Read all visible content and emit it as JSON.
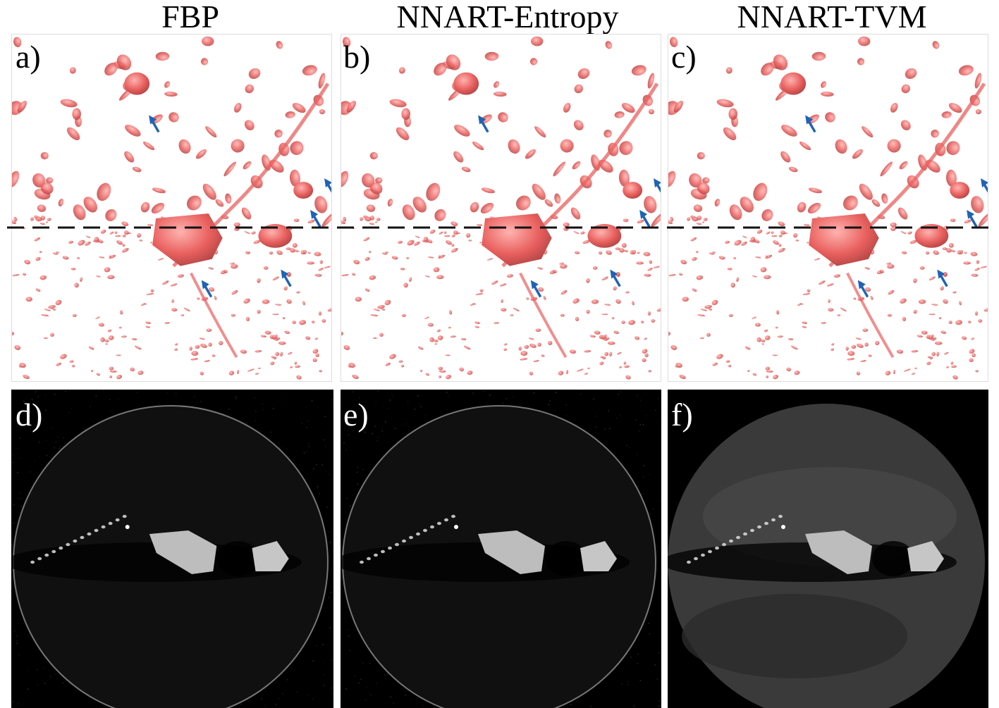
{
  "columns": [
    {
      "title": "FBP"
    },
    {
      "title": "NNART-Entropy"
    },
    {
      "title": "NNART-TVM"
    }
  ],
  "panels": {
    "a": {
      "label": "a)"
    },
    "b": {
      "label": "b)"
    },
    "c": {
      "label": "c)"
    },
    "d": {
      "label": "d)"
    },
    "e": {
      "label": "e)"
    },
    "f": {
      "label": "f)"
    }
  },
  "colors": {
    "render_blob": "#e8605e",
    "arrow": "#1f63b4",
    "slice_background": "#000000",
    "dashed_line": "#111111"
  },
  "annotations": {
    "arrow_count_per_render_panel": 5,
    "dashed_line": "horizontal dashed line marking the slice position across top panels"
  }
}
